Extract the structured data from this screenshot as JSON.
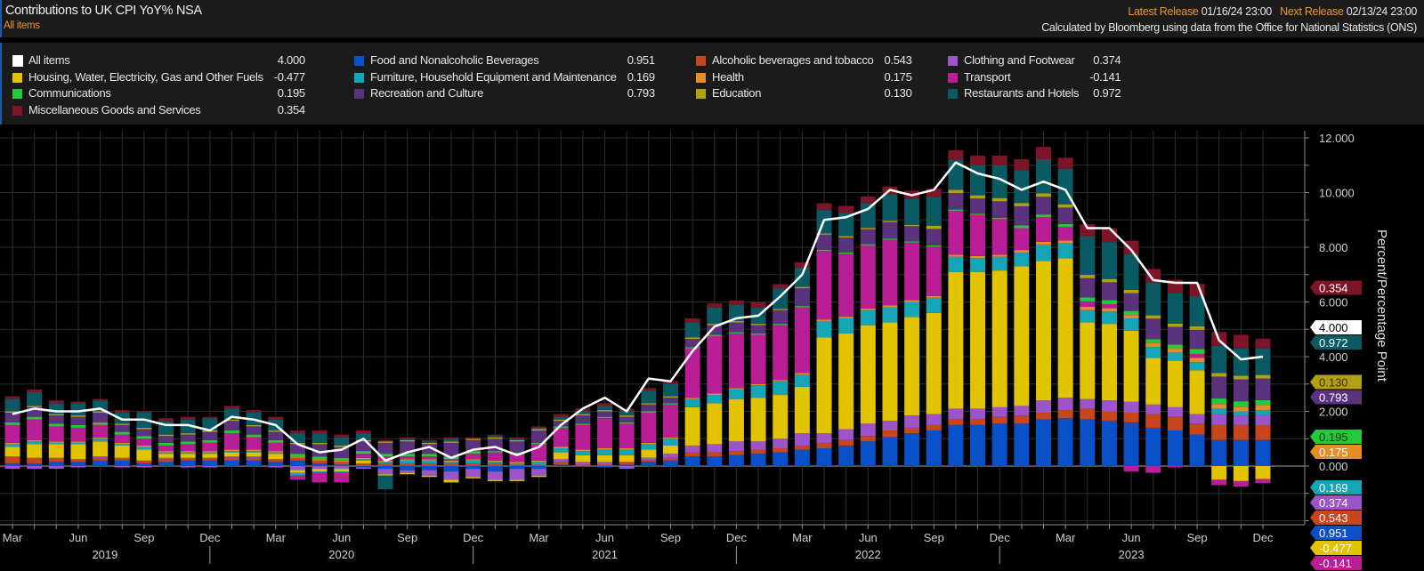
{
  "header": {
    "title": "Contributions to UK CPI YoY% NSA",
    "subtitle": "All items",
    "latest_release_label": "Latest Release",
    "latest_release_value": "01/16/24 23:00",
    "next_release_label": "Next Release",
    "next_release_value": "02/13/24 23:00",
    "source": "Calculated by Bloomberg using data from the Office for National Statistics (ONS)"
  },
  "chart_data": {
    "type": "bar",
    "stacked": true,
    "ylabel": "Percent/Percentage Point",
    "ylim": [
      -2.2,
      12.3
    ],
    "yticks": [
      "12.000",
      "10.000",
      "8.000",
      "6.000",
      "4.000",
      "2.000",
      "0.000"
    ],
    "ytick_values": [
      12,
      10,
      8,
      6,
      4,
      2,
      0
    ],
    "grid": true,
    "axis_side": "right",
    "month_ticks": [
      "Mar",
      "Jun",
      "Sep",
      "Dec"
    ],
    "years": [
      "2019",
      "2020",
      "2021",
      "2022",
      "2023"
    ],
    "categories": [
      "Mar 2019",
      "Apr 2019",
      "May 2019",
      "Jun 2019",
      "Jul 2019",
      "Aug 2019",
      "Sep 2019",
      "Oct 2019",
      "Nov 2019",
      "Dec 2019",
      "Jan 2020",
      "Feb 2020",
      "Mar 2020",
      "Apr 2020",
      "May 2020",
      "Jun 2020",
      "Jul 2020",
      "Aug 2020",
      "Sep 2020",
      "Oct 2020",
      "Nov 2020",
      "Dec 2020",
      "Jan 2021",
      "Feb 2021",
      "Mar 2021",
      "Apr 2021",
      "May 2021",
      "Jun 2021",
      "Jul 2021",
      "Aug 2021",
      "Sep 2021",
      "Oct 2021",
      "Nov 2021",
      "Dec 2021",
      "Jan 2022",
      "Feb 2022",
      "Mar 2022",
      "Apr 2022",
      "May 2022",
      "Jun 2022",
      "Jul 2022",
      "Aug 2022",
      "Sep 2022",
      "Oct 2022",
      "Nov 2022",
      "Dec 2022",
      "Jan 2023",
      "Feb 2023",
      "Mar 2023",
      "Apr 2023",
      "May 2023",
      "Jun 2023",
      "Jul 2023",
      "Aug 2023",
      "Sep 2023",
      "Oct 2023",
      "Nov 2023",
      "Dec 2023"
    ],
    "line_series": {
      "name": "All items",
      "latest": "4.000",
      "color": "#ffffff",
      "values": [
        1.9,
        2.1,
        2.0,
        2.0,
        2.1,
        1.7,
        1.7,
        1.5,
        1.5,
        1.3,
        1.8,
        1.7,
        1.5,
        0.8,
        0.5,
        0.6,
        1.0,
        0.2,
        0.5,
        0.7,
        0.3,
        0.6,
        0.7,
        0.4,
        0.7,
        1.5,
        2.1,
        2.5,
        2.0,
        3.2,
        3.1,
        4.2,
        5.1,
        5.4,
        5.5,
        6.2,
        7.0,
        9.0,
        9.1,
        9.4,
        10.1,
        9.9,
        10.1,
        11.1,
        10.7,
        10.5,
        10.1,
        10.4,
        10.1,
        8.7,
        8.7,
        7.9,
        6.8,
        6.7,
        6.7,
        4.6,
        3.9,
        4.0
      ]
    },
    "series": [
      {
        "name": "Food and Nonalcoholic Beverages",
        "latest": "0.951",
        "color": "#0a50c8",
        "values": [
          0.1,
          0.1,
          0.15,
          0.15,
          0.2,
          0.2,
          0.1,
          0.15,
          0.2,
          0.2,
          0.2,
          0.2,
          0.15,
          0.2,
          0.1,
          0.05,
          -0.05,
          -0.1,
          -0.15,
          -0.15,
          -0.2,
          -0.1,
          -0.2,
          -0.1,
          -0.1,
          0.05,
          0.0,
          -0.05,
          0.05,
          0.15,
          0.2,
          0.35,
          0.35,
          0.4,
          0.45,
          0.5,
          0.6,
          0.65,
          0.75,
          0.9,
          1.05,
          1.2,
          1.3,
          1.5,
          1.5,
          1.55,
          1.55,
          1.7,
          1.75,
          1.7,
          1.65,
          1.6,
          1.4,
          1.3,
          1.15,
          0.95,
          0.95,
          0.951
        ]
      },
      {
        "name": "Alcoholic beverages and tobacco",
        "latest": "0.543",
        "color": "#c8461e",
        "values": [
          0.25,
          0.2,
          0.15,
          0.1,
          0.1,
          0.1,
          0.1,
          0.1,
          0.1,
          0.1,
          0.1,
          0.1,
          0.1,
          0.1,
          0.1,
          0.1,
          0.1,
          0.1,
          0.1,
          0.1,
          0.1,
          0.1,
          0.1,
          0.05,
          0.05,
          0.1,
          0.05,
          0.05,
          0.1,
          0.05,
          0.1,
          0.15,
          0.15,
          0.15,
          0.15,
          0.15,
          0.15,
          0.2,
          0.2,
          0.2,
          0.25,
          0.2,
          0.2,
          0.2,
          0.2,
          0.25,
          0.3,
          0.25,
          0.3,
          0.4,
          0.35,
          0.35,
          0.5,
          0.5,
          0.4,
          0.55,
          0.55,
          0.543
        ]
      },
      {
        "name": "Clothing and Footwear",
        "latest": "0.374",
        "color": "#9b55c8",
        "values": [
          -0.1,
          -0.1,
          -0.1,
          -0.05,
          0.05,
          -0.05,
          -0.05,
          0.05,
          -0.05,
          -0.05,
          0.05,
          0.05,
          -0.05,
          -0.15,
          -0.1,
          -0.1,
          -0.05,
          -0.2,
          -0.1,
          -0.2,
          -0.3,
          -0.3,
          -0.3,
          -0.4,
          -0.25,
          0.1,
          0.1,
          0.1,
          -0.1,
          0.1,
          0.15,
          0.25,
          0.3,
          0.35,
          0.3,
          0.35,
          0.45,
          0.35,
          0.4,
          0.45,
          0.35,
          0.45,
          0.4,
          0.4,
          0.4,
          0.35,
          0.35,
          0.45,
          0.45,
          0.35,
          0.4,
          0.4,
          0.35,
          0.35,
          0.35,
          0.4,
          0.35,
          0.374
        ]
      },
      {
        "name": "Housing, Water, Electricity, Gas and Other Fuels",
        "latest": "-0.477",
        "color": "#e1c300",
        "values": [
          0.35,
          0.5,
          0.5,
          0.55,
          0.55,
          0.45,
          0.4,
          0.15,
          0.15,
          0.15,
          0.15,
          0.15,
          0.2,
          -0.1,
          -0.1,
          -0.1,
          0.1,
          -0.05,
          -0.05,
          -0.05,
          -0.1,
          -0.05,
          -0.05,
          -0.05,
          -0.05,
          0.25,
          0.25,
          0.25,
          0.25,
          0.3,
          0.3,
          1.4,
          1.5,
          1.55,
          1.6,
          1.6,
          1.7,
          3.5,
          3.5,
          3.6,
          3.6,
          3.6,
          3.7,
          5.0,
          5.0,
          5.0,
          5.1,
          5.1,
          5.1,
          2.8,
          2.8,
          2.6,
          1.7,
          1.7,
          1.6,
          -0.5,
          -0.55,
          -0.477
        ]
      },
      {
        "name": "Furniture, Household Equipment and Maintenance",
        "latest": "0.169",
        "color": "#14a5b9",
        "values": [
          0.1,
          0.1,
          0.05,
          0.05,
          0.1,
          0.05,
          0.1,
          0.05,
          0.05,
          0.05,
          0.05,
          0.05,
          0.05,
          -0.1,
          -0.05,
          -0.05,
          0.05,
          0.05,
          0.1,
          0.1,
          0.05,
          0.1,
          0.05,
          0.05,
          0.1,
          0.15,
          0.15,
          0.2,
          0.2,
          0.2,
          0.25,
          0.3,
          0.3,
          0.35,
          0.45,
          0.5,
          0.45,
          0.6,
          0.55,
          0.55,
          0.55,
          0.55,
          0.55,
          0.55,
          0.5,
          0.5,
          0.5,
          0.6,
          0.55,
          0.45,
          0.45,
          0.45,
          0.4,
          0.3,
          0.3,
          0.2,
          0.15,
          0.169
        ]
      },
      {
        "name": "Health",
        "latest": "0.175",
        "color": "#e68c28",
        "values": [
          0.05,
          0.05,
          0.05,
          0.05,
          0.05,
          0.05,
          0.05,
          0.05,
          0.05,
          0.05,
          0.05,
          0.05,
          0.05,
          0.05,
          0.05,
          0.05,
          0.05,
          0.05,
          0.05,
          0.05,
          0.05,
          0.05,
          0.05,
          0.05,
          0.05,
          0.05,
          0.05,
          0.05,
          0.05,
          0.05,
          0.05,
          0.05,
          0.05,
          0.05,
          0.05,
          0.05,
          0.05,
          0.06,
          0.06,
          0.06,
          0.07,
          0.07,
          0.07,
          0.08,
          0.08,
          0.08,
          0.1,
          0.1,
          0.1,
          0.12,
          0.12,
          0.12,
          0.14,
          0.14,
          0.15,
          0.17,
          0.17,
          0.175
        ]
      },
      {
        "name": "Transport",
        "latest": "-0.141",
        "color": "#b91e96",
        "values": [
          0.65,
          0.75,
          0.55,
          0.5,
          0.45,
          0.3,
          0.25,
          0.2,
          0.25,
          0.3,
          0.6,
          0.45,
          0.3,
          -0.15,
          -0.35,
          -0.35,
          0.15,
          0.15,
          0.1,
          0.1,
          0.05,
          0.2,
          0.3,
          0.3,
          0.6,
          0.7,
          0.9,
          1.1,
          0.9,
          1.1,
          1.2,
          1.8,
          2.1,
          2.0,
          1.8,
          2.0,
          2.4,
          2.5,
          2.3,
          2.3,
          2.4,
          2.1,
          1.8,
          1.6,
          1.5,
          1.3,
          0.8,
          0.9,
          0.5,
          0.2,
          0.15,
          -0.2,
          -0.25,
          -0.05,
          0.15,
          -0.2,
          -0.2,
          -0.141
        ]
      },
      {
        "name": "Communications",
        "latest": "0.195",
        "color": "#28c83c",
        "values": [
          0.1,
          0.1,
          0.1,
          0.1,
          0.1,
          0.1,
          0.1,
          0.1,
          0.1,
          0.1,
          0.1,
          0.1,
          0.1,
          0.1,
          0.1,
          0.1,
          0.1,
          0.1,
          0.1,
          0.1,
          0.1,
          0.1,
          0.05,
          0.05,
          0.05,
          0.05,
          0.05,
          0.05,
          0.05,
          0.05,
          0.05,
          0.05,
          0.05,
          0.05,
          0.05,
          0.05,
          0.05,
          0.05,
          0.05,
          0.05,
          0.05,
          0.05,
          0.05,
          0.05,
          0.05,
          0.05,
          0.1,
          0.1,
          0.1,
          0.15,
          0.15,
          0.15,
          0.15,
          0.15,
          0.18,
          0.2,
          0.2,
          0.195
        ]
      },
      {
        "name": "Recreation and Culture",
        "latest": "0.793",
        "color": "#5a327d",
        "values": [
          0.35,
          0.35,
          0.3,
          0.3,
          0.35,
          0.25,
          0.25,
          0.25,
          0.25,
          0.3,
          0.35,
          0.3,
          0.3,
          0.35,
          0.45,
          0.4,
          0.35,
          0.4,
          0.45,
          0.35,
          0.5,
          0.4,
          0.45,
          0.4,
          0.45,
          0.2,
          0.3,
          0.2,
          0.2,
          0.25,
          0.2,
          0.3,
          0.35,
          0.35,
          0.3,
          0.5,
          0.65,
          0.55,
          0.55,
          0.55,
          0.6,
          0.55,
          0.6,
          0.6,
          0.55,
          0.6,
          0.7,
          0.65,
          0.6,
          0.7,
          0.65,
          0.65,
          0.75,
          0.65,
          0.7,
          0.8,
          0.8,
          0.793
        ]
      },
      {
        "name": "Education",
        "latest": "0.130",
        "color": "#b4a014",
        "values": [
          0.05,
          0.05,
          0.05,
          0.05,
          0.05,
          0.05,
          0.05,
          0.05,
          0.05,
          0.05,
          0.05,
          0.05,
          0.05,
          0.05,
          0.05,
          0.05,
          0.05,
          0.05,
          0.05,
          0.05,
          0.05,
          0.05,
          0.05,
          0.05,
          0.05,
          0.05,
          0.05,
          0.05,
          0.05,
          0.05,
          0.05,
          0.05,
          0.05,
          0.05,
          0.05,
          0.05,
          0.05,
          0.05,
          0.05,
          0.05,
          0.05,
          0.05,
          0.12,
          0.12,
          0.12,
          0.12,
          0.12,
          0.12,
          0.12,
          0.12,
          0.12,
          0.12,
          0.12,
          0.12,
          0.13,
          0.13,
          0.13,
          0.13
        ]
      },
      {
        "name": "Restaurants and Hotels",
        "latest": "0.972",
        "color": "#0a5a64",
        "values": [
          0.45,
          0.5,
          0.4,
          0.45,
          0.4,
          0.4,
          0.55,
          0.5,
          0.5,
          0.45,
          0.4,
          0.45,
          0.4,
          0.35,
          0.35,
          0.3,
          0.25,
          -0.5,
          0.05,
          0.05,
          0.1,
          0.0,
          0.05,
          0.05,
          0.05,
          0.1,
          0.1,
          0.15,
          0.15,
          0.45,
          0.45,
          0.55,
          0.6,
          0.6,
          0.6,
          0.75,
          0.7,
          0.85,
          0.85,
          0.9,
          0.95,
          0.95,
          1.05,
          1.1,
          1.1,
          1.2,
          1.2,
          1.25,
          1.3,
          1.4,
          1.35,
          1.3,
          1.2,
          1.1,
          1.1,
          1.0,
          1.0,
          0.972
        ]
      },
      {
        "name": "Miscellaneous Goods and Services",
        "latest": "0.354",
        "color": "#7d1428",
        "values": [
          0.1,
          0.1,
          0.1,
          0.05,
          0.05,
          0.1,
          0.05,
          0.1,
          0.1,
          0.05,
          0.1,
          0.1,
          0.1,
          0.1,
          0.1,
          0.1,
          0.1,
          0.05,
          0.05,
          0.05,
          0.05,
          0.05,
          0.05,
          0.05,
          0.05,
          0.1,
          0.1,
          0.1,
          0.1,
          0.1,
          0.1,
          0.15,
          0.15,
          0.15,
          0.2,
          0.15,
          0.2,
          0.25,
          0.25,
          0.25,
          0.3,
          0.3,
          0.3,
          0.35,
          0.35,
          0.35,
          0.4,
          0.45,
          0.4,
          0.45,
          0.5,
          0.5,
          0.5,
          0.5,
          0.45,
          0.5,
          0.5,
          0.354
        ]
      }
    ]
  }
}
